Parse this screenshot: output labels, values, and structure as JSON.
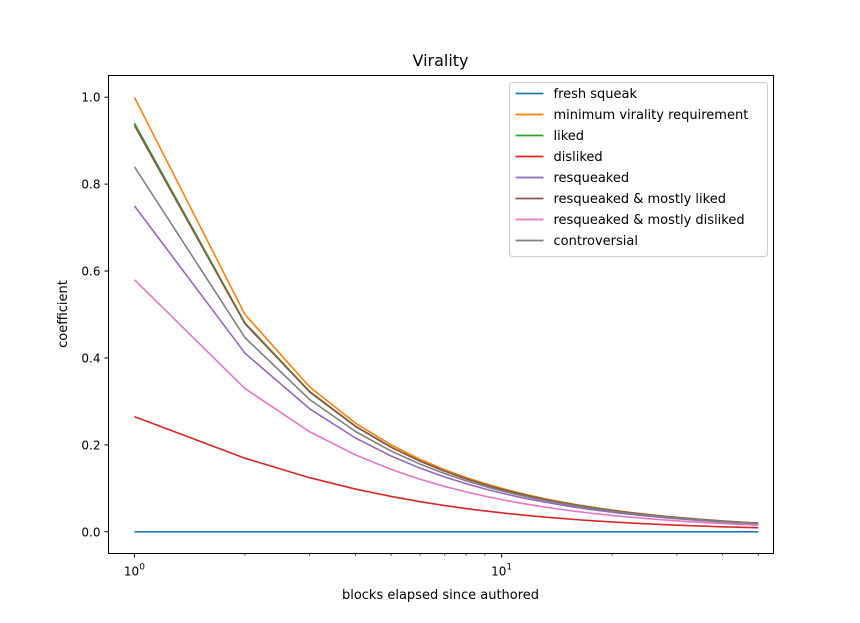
{
  "chart_data": {
    "type": "line",
    "title": "Virality",
    "xlabel": "blocks elapsed since authored",
    "ylabel": "coefficient",
    "xscale": "log",
    "xlim": [
      0.85,
      55
    ],
    "ylim": [
      -0.05,
      1.05
    ],
    "xticks": [
      {
        "value": 1,
        "base": "10",
        "exp": "0"
      },
      {
        "value": 10,
        "base": "10",
        "exp": "1"
      }
    ],
    "yticks": [
      0.0,
      0.2,
      0.4,
      0.6,
      0.8,
      1.0
    ],
    "ytick_labels": [
      "0.0",
      "0.2",
      "0.4",
      "0.6",
      "0.8",
      "1.0"
    ],
    "legend_position": "top-right",
    "grid": false,
    "x": [
      1,
      2,
      3,
      4,
      5,
      6,
      7,
      8,
      9,
      10,
      11,
      12,
      13,
      14,
      15,
      16,
      17,
      18,
      19,
      20,
      21,
      22,
      23,
      24,
      25,
      26,
      27,
      28,
      29,
      30,
      31,
      32,
      33,
      34,
      35,
      36,
      37,
      38,
      39,
      40,
      41,
      42,
      43,
      44,
      45,
      46,
      47,
      48,
      49,
      50
    ],
    "series": [
      {
        "name": "fresh squeak",
        "color": "#1f77b4",
        "type": "constant",
        "a": 0.0,
        "k": 0.0
      },
      {
        "name": "minimum virality requirement",
        "color": "#ff7f0e",
        "type": "reciprocal",
        "a": 1.0,
        "k": 0.0
      },
      {
        "name": "liked",
        "color": "#2ca02c",
        "type": "saturating",
        "a": 0.94,
        "k": 0.0155
      },
      {
        "name": "disliked",
        "color": "#d62728",
        "type": "saturating",
        "a": 0.265,
        "k": 0.3
      },
      {
        "name": "resqueaked",
        "color": "#9467bd",
        "type": "saturating",
        "a": 0.75,
        "k": 0.075
      },
      {
        "name": "resqueaked & mostly liked",
        "color": "#8c564b",
        "type": "saturating",
        "a": 0.935,
        "k": 0.018
      },
      {
        "name": "resqueaked & mostly disliked",
        "color": "#e377c2",
        "type": "saturating",
        "a": 0.58,
        "k": 0.18
      },
      {
        "name": "controversial",
        "color": "#7f7f7f",
        "type": "saturating",
        "a": 0.84,
        "k": 0.04
      }
    ]
  }
}
